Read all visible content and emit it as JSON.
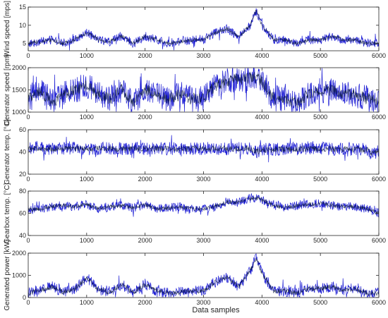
{
  "figure": {
    "xlabel": "Data samples",
    "x_ticks": [
      0,
      1000,
      2000,
      3000,
      4000,
      5000,
      6000
    ]
  },
  "colors": {
    "series_line": "#1f1fd4",
    "series_overlay": "#0a1a3c",
    "axes": "#262626",
    "background": "#ffffff"
  },
  "chart_data": [
    {
      "type": "line",
      "ylabel": "Wind speed [mps]",
      "xlim": [
        0,
        6000
      ],
      "ylim": [
        3,
        15
      ],
      "y_ticks": [
        5,
        10,
        15
      ],
      "x_ticks": [
        0,
        1000,
        2000,
        3000,
        4000,
        5000,
        6000
      ],
      "grid": false,
      "anchors": [
        [
          0,
          5
        ],
        [
          200,
          5.5
        ],
        [
          400,
          6
        ],
        [
          600,
          5
        ],
        [
          800,
          6
        ],
        [
          1000,
          8
        ],
        [
          1200,
          6
        ],
        [
          1400,
          5.5
        ],
        [
          1600,
          7
        ],
        [
          1800,
          5
        ],
        [
          2000,
          7
        ],
        [
          2200,
          6
        ],
        [
          2400,
          5
        ],
        [
          2600,
          5.5
        ],
        [
          2800,
          6
        ],
        [
          3000,
          6
        ],
        [
          3200,
          8
        ],
        [
          3400,
          9
        ],
        [
          3600,
          7
        ],
        [
          3800,
          10
        ],
        [
          3900,
          14
        ],
        [
          4000,
          10
        ],
        [
          4200,
          6
        ],
        [
          4400,
          6
        ],
        [
          4600,
          5
        ],
        [
          4800,
          6
        ],
        [
          5000,
          6
        ],
        [
          5200,
          7
        ],
        [
          5400,
          6
        ],
        [
          5600,
          6
        ],
        [
          5800,
          5
        ],
        [
          6000,
          5
        ]
      ],
      "noise": 1.2
    },
    {
      "type": "line",
      "ylabel": "Generator speed [rpm]",
      "xlim": [
        0,
        6000
      ],
      "ylim": [
        1000,
        2000
      ],
      "y_ticks": [
        1000,
        1500,
        2000
      ],
      "x_ticks": [
        0,
        1000,
        2000,
        3000,
        4000,
        5000,
        6000
      ],
      "grid": false,
      "anchors": [
        [
          0,
          1300
        ],
        [
          200,
          1500
        ],
        [
          400,
          1200
        ],
        [
          600,
          1400
        ],
        [
          800,
          1500
        ],
        [
          1000,
          1600
        ],
        [
          1200,
          1400
        ],
        [
          1400,
          1300
        ],
        [
          1600,
          1500
        ],
        [
          1800,
          1200
        ],
        [
          2000,
          1500
        ],
        [
          2200,
          1400
        ],
        [
          2400,
          1300
        ],
        [
          2600,
          1400
        ],
        [
          2800,
          1300
        ],
        [
          3000,
          1300
        ],
        [
          3200,
          1600
        ],
        [
          3400,
          1700
        ],
        [
          3600,
          1750
        ],
        [
          3800,
          1780
        ],
        [
          3900,
          1780
        ],
        [
          4000,
          1700
        ],
        [
          4200,
          1300
        ],
        [
          4400,
          1300
        ],
        [
          4600,
          1200
        ],
        [
          4800,
          1400
        ],
        [
          5000,
          1500
        ],
        [
          5200,
          1500
        ],
        [
          5400,
          1400
        ],
        [
          5600,
          1400
        ],
        [
          5800,
          1300
        ],
        [
          6000,
          1200
        ]
      ],
      "noise": 300
    },
    {
      "type": "line",
      "ylabel": "Generator temp. [°C]",
      "xlim": [
        0,
        6000
      ],
      "ylim": [
        20,
        60
      ],
      "y_ticks": [
        20,
        40,
        60
      ],
      "x_ticks": [
        0,
        1000,
        2000,
        3000,
        4000,
        5000,
        6000
      ],
      "grid": false,
      "anchors": [
        [
          0,
          43
        ],
        [
          1000,
          43
        ],
        [
          2000,
          43
        ],
        [
          3000,
          43
        ],
        [
          3800,
          43
        ],
        [
          3900,
          40
        ],
        [
          4000,
          42
        ],
        [
          5000,
          43
        ],
        [
          5800,
          42
        ],
        [
          5900,
          38
        ],
        [
          6000,
          42
        ]
      ],
      "noise": 6
    },
    {
      "type": "line",
      "ylabel": "Gearbox temp. [°C]",
      "xlim": [
        0,
        6000
      ],
      "ylim": [
        40,
        80
      ],
      "y_ticks": [
        40,
        60,
        80
      ],
      "x_ticks": [
        0,
        1000,
        2000,
        3000,
        4000,
        5000,
        6000
      ],
      "grid": false,
      "anchors": [
        [
          0,
          63
        ],
        [
          200,
          64
        ],
        [
          400,
          66
        ],
        [
          600,
          67
        ],
        [
          800,
          66
        ],
        [
          1000,
          68
        ],
        [
          1200,
          64
        ],
        [
          1400,
          66
        ],
        [
          1600,
          67
        ],
        [
          1800,
          65
        ],
        [
          2000,
          68
        ],
        [
          2200,
          64
        ],
        [
          2400,
          65
        ],
        [
          2600,
          66
        ],
        [
          2800,
          64
        ],
        [
          3000,
          64
        ],
        [
          3200,
          66
        ],
        [
          3400,
          70
        ],
        [
          3600,
          70
        ],
        [
          3800,
          73
        ],
        [
          3900,
          74
        ],
        [
          4000,
          72
        ],
        [
          4200,
          67
        ],
        [
          4400,
          65
        ],
        [
          4600,
          67
        ],
        [
          4800,
          68
        ],
        [
          5000,
          69
        ],
        [
          5200,
          67
        ],
        [
          5400,
          66
        ],
        [
          5600,
          66
        ],
        [
          5800,
          64
        ],
        [
          6000,
          60
        ]
      ],
      "noise": 4
    },
    {
      "type": "line",
      "ylabel": "Generated power [kW]",
      "xlim": [
        0,
        6000
      ],
      "ylim": [
        0,
        2000
      ],
      "y_ticks": [
        0,
        1000,
        2000
      ],
      "x_ticks": [
        0,
        1000,
        2000,
        3000,
        4000,
        5000,
        6000
      ],
      "grid": false,
      "anchors": [
        [
          0,
          200
        ],
        [
          200,
          300
        ],
        [
          400,
          500
        ],
        [
          600,
          250
        ],
        [
          800,
          400
        ],
        [
          1000,
          900
        ],
        [
          1200,
          350
        ],
        [
          1400,
          250
        ],
        [
          1600,
          600
        ],
        [
          1800,
          200
        ],
        [
          2000,
          600
        ],
        [
          2200,
          300
        ],
        [
          2400,
          200
        ],
        [
          2600,
          250
        ],
        [
          2800,
          300
        ],
        [
          3000,
          300
        ],
        [
          3200,
          700
        ],
        [
          3400,
          900
        ],
        [
          3600,
          500
        ],
        [
          3800,
          1200
        ],
        [
          3900,
          1800
        ],
        [
          4000,
          1100
        ],
        [
          4200,
          300
        ],
        [
          4400,
          300
        ],
        [
          4600,
          200
        ],
        [
          4800,
          400
        ],
        [
          5000,
          400
        ],
        [
          5200,
          500
        ],
        [
          5400,
          300
        ],
        [
          5600,
          400
        ],
        [
          5800,
          200
        ],
        [
          6000,
          200
        ]
      ],
      "noise": 250
    }
  ]
}
